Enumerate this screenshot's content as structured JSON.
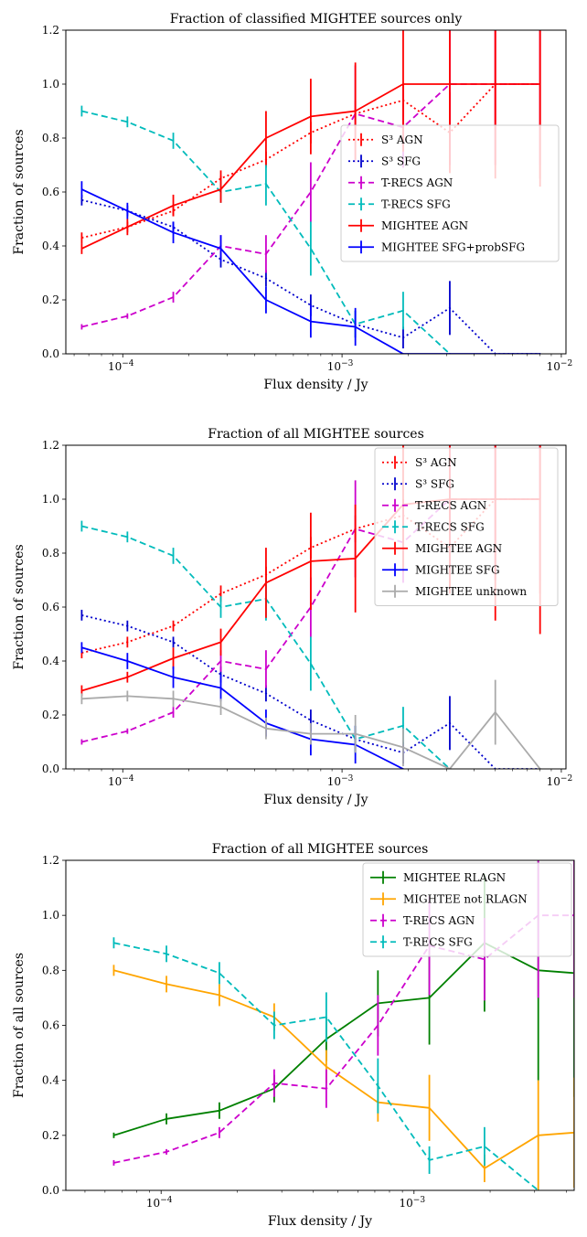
{
  "chart_data": [
    {
      "type": "line",
      "title": "Fraction of classified MIGHTEE sources only",
      "xlabel": "Flux density / Jy",
      "ylabel": "Fraction of sources",
      "xscale": "log",
      "xlim": [
        5.5e-05,
        0.0105
      ],
      "ylim": [
        0,
        1.2
      ],
      "yticks": [
        "0.0",
        "0.2",
        "0.4",
        "0.6",
        "0.8",
        "1.0",
        "1.2"
      ],
      "xticks": [
        {
          "value": 0.0001,
          "base": "10",
          "exp": "−4"
        },
        {
          "value": 0.001,
          "base": "10",
          "exp": "−3"
        },
        {
          "value": 0.01,
          "base": "10",
          "exp": "−2"
        }
      ],
      "legend": "right",
      "series": [
        {
          "name": "S³ AGN",
          "color": "#ff0000",
          "dash": "dot",
          "x": [
            6.5e-05,
            0.000105,
            0.00017,
            0.00028,
            0.00045,
            0.00072,
            0.00115,
            0.0019,
            0.0031,
            0.005,
            0.008
          ],
          "y": [
            0.43,
            0.47,
            0.53,
            0.65,
            0.72,
            0.82,
            0.89,
            0.94,
            0.82,
            1.0,
            1.0
          ],
          "err": [
            0.02,
            0.02,
            0.02,
            0.03,
            0.03,
            0.04,
            0.05,
            0.06,
            0.15,
            0.3,
            0.35
          ]
        },
        {
          "name": "S³ SFG",
          "color": "#0000cc",
          "dash": "dot",
          "x": [
            6.5e-05,
            0.000105,
            0.00017,
            0.00028,
            0.00045,
            0.00072,
            0.00115,
            0.0019,
            0.0031,
            0.005,
            0.008
          ],
          "y": [
            0.57,
            0.53,
            0.47,
            0.35,
            0.28,
            0.18,
            0.11,
            0.06,
            0.17,
            0.0,
            0.0
          ],
          "err": [
            0.02,
            0.02,
            0.02,
            0.03,
            0.03,
            0.04,
            0.05,
            0.04,
            0.1,
            0.0,
            0.0
          ]
        },
        {
          "name": "T-RECS AGN",
          "color": "#cc00cc",
          "dash": "dash",
          "x": [
            6.5e-05,
            0.000105,
            0.00017,
            0.00028,
            0.00045,
            0.00072,
            0.00115,
            0.0019,
            0.0031,
            0.005,
            0.008
          ],
          "y": [
            0.1,
            0.14,
            0.21,
            0.4,
            0.37,
            0.6,
            0.89,
            0.84,
            1.0,
            1.0,
            1.0
          ],
          "err": [
            0.01,
            0.01,
            0.02,
            0.04,
            0.07,
            0.11,
            0.18,
            0.15,
            0.3,
            0.3,
            0.3
          ]
        },
        {
          "name": "T-RECS SFG",
          "color": "#00bbbb",
          "dash": "dash",
          "x": [
            6.5e-05,
            0.000105,
            0.00017,
            0.00028,
            0.00045,
            0.00072,
            0.00115,
            0.0019,
            0.0031
          ],
          "y": [
            0.9,
            0.86,
            0.79,
            0.6,
            0.63,
            0.39,
            0.11,
            0.16,
            0.0
          ],
          "err": [
            0.02,
            0.02,
            0.03,
            0.04,
            0.08,
            0.1,
            0.05,
            0.07,
            0.0
          ]
        },
        {
          "name": "MIGHTEE AGN",
          "color": "#ff0000",
          "dash": "solid",
          "x": [
            6.5e-05,
            0.000105,
            0.00017,
            0.00028,
            0.00045,
            0.00072,
            0.00115,
            0.0019,
            0.0031,
            0.005,
            0.008
          ],
          "y": [
            0.39,
            0.47,
            0.55,
            0.61,
            0.8,
            0.88,
            0.9,
            1.0,
            1.0,
            1.0,
            1.0
          ],
          "err": [
            0.02,
            0.03,
            0.04,
            0.05,
            0.1,
            0.14,
            0.18,
            0.25,
            0.3,
            0.35,
            0.38
          ]
        },
        {
          "name": "MIGHTEE SFG+probSFG",
          "color": "#0000ff",
          "dash": "solid",
          "x": [
            6.5e-05,
            0.000105,
            0.00017,
            0.00028,
            0.00045,
            0.00072,
            0.00115,
            0.0019,
            0.0031,
            0.005,
            0.008
          ],
          "y": [
            0.61,
            0.53,
            0.45,
            0.39,
            0.2,
            0.12,
            0.1,
            0.0,
            0.0,
            0.0,
            0.0
          ],
          "err": [
            0.03,
            0.03,
            0.04,
            0.05,
            0.05,
            0.06,
            0.07,
            0.0,
            0.0,
            0.0,
            0.0
          ]
        }
      ]
    },
    {
      "type": "line",
      "title": "Fraction of all MIGHTEE sources",
      "xlabel": "Flux density / Jy",
      "ylabel": "Fraction of sources",
      "xscale": "log",
      "xlim": [
        5.5e-05,
        0.0105
      ],
      "ylim": [
        0,
        1.2
      ],
      "yticks": [
        "0.0",
        "0.2",
        "0.4",
        "0.6",
        "0.8",
        "1.0",
        "1.2"
      ],
      "xticks": [
        {
          "value": 0.0001,
          "base": "10",
          "exp": "−4"
        },
        {
          "value": 0.001,
          "base": "10",
          "exp": "−3"
        },
        {
          "value": 0.01,
          "base": "10",
          "exp": "−2"
        }
      ],
      "legend": "right",
      "series": [
        {
          "name": "S³ AGN",
          "color": "#ff0000",
          "dash": "dot",
          "x": [
            6.5e-05,
            0.000105,
            0.00017,
            0.00028,
            0.00045,
            0.00072,
            0.00115,
            0.0019,
            0.0031,
            0.005,
            0.008
          ],
          "y": [
            0.43,
            0.47,
            0.53,
            0.65,
            0.72,
            0.82,
            0.89,
            0.94,
            0.82,
            1.0,
            1.0
          ],
          "err": [
            0.02,
            0.02,
            0.02,
            0.03,
            0.03,
            0.04,
            0.05,
            0.06,
            0.15,
            0.3,
            0.35
          ]
        },
        {
          "name": "S³ SFG",
          "color": "#0000cc",
          "dash": "dot",
          "x": [
            6.5e-05,
            0.000105,
            0.00017,
            0.00028,
            0.00045,
            0.00072,
            0.00115,
            0.0019,
            0.0031,
            0.005,
            0.008
          ],
          "y": [
            0.57,
            0.53,
            0.47,
            0.35,
            0.28,
            0.18,
            0.11,
            0.06,
            0.17,
            0.0,
            0.0
          ],
          "err": [
            0.02,
            0.02,
            0.02,
            0.03,
            0.03,
            0.04,
            0.05,
            0.04,
            0.1,
            0.0,
            0.0
          ]
        },
        {
          "name": "T-RECS AGN",
          "color": "#cc00cc",
          "dash": "dash",
          "x": [
            6.5e-05,
            0.000105,
            0.00017,
            0.00028,
            0.00045,
            0.00072,
            0.00115,
            0.0019,
            0.0031,
            0.005,
            0.008
          ],
          "y": [
            0.1,
            0.14,
            0.21,
            0.4,
            0.37,
            0.6,
            0.89,
            0.84,
            1.0,
            1.0,
            1.0
          ],
          "err": [
            0.01,
            0.01,
            0.02,
            0.04,
            0.07,
            0.11,
            0.18,
            0.15,
            0.3,
            0.3,
            0.3
          ]
        },
        {
          "name": "T-RECS SFG",
          "color": "#00bbbb",
          "dash": "dash",
          "x": [
            6.5e-05,
            0.000105,
            0.00017,
            0.00028,
            0.00045,
            0.00072,
            0.00115,
            0.0019,
            0.0031
          ],
          "y": [
            0.9,
            0.86,
            0.79,
            0.6,
            0.63,
            0.39,
            0.11,
            0.16,
            0.0
          ],
          "err": [
            0.02,
            0.02,
            0.03,
            0.04,
            0.08,
            0.1,
            0.05,
            0.07,
            0.0
          ]
        },
        {
          "name": "MIGHTEE AGN",
          "color": "#ff0000",
          "dash": "solid",
          "x": [
            6.5e-05,
            0.000105,
            0.00017,
            0.00028,
            0.00045,
            0.00072,
            0.00115,
            0.0019,
            0.0031,
            0.005,
            0.008
          ],
          "y": [
            0.29,
            0.34,
            0.41,
            0.47,
            0.69,
            0.77,
            0.78,
            0.98,
            1.0,
            1.0,
            1.0
          ],
          "err": [
            0.02,
            0.02,
            0.04,
            0.05,
            0.13,
            0.18,
            0.2,
            0.25,
            0.35,
            0.45,
            0.5
          ]
        },
        {
          "name": "MIGHTEE SFG",
          "color": "#0000ff",
          "dash": "solid",
          "x": [
            6.5e-05,
            0.000105,
            0.00017,
            0.00028,
            0.00045,
            0.00072,
            0.00115,
            0.0019
          ],
          "y": [
            0.45,
            0.4,
            0.34,
            0.3,
            0.17,
            0.11,
            0.09,
            0.0
          ],
          "err": [
            0.02,
            0.03,
            0.04,
            0.05,
            0.05,
            0.06,
            0.07,
            0.0
          ]
        },
        {
          "name": "MIGHTEE unknown",
          "color": "#aaaaaa",
          "dash": "solid",
          "x": [
            6.5e-05,
            0.000105,
            0.00017,
            0.00028,
            0.00045,
            0.00072,
            0.00115,
            0.0019,
            0.0031,
            0.005,
            0.008
          ],
          "y": [
            0.26,
            0.27,
            0.26,
            0.23,
            0.15,
            0.13,
            0.13,
            0.08,
            0.0,
            0.21,
            0.0
          ],
          "err": [
            0.02,
            0.02,
            0.03,
            0.03,
            0.04,
            0.04,
            0.07,
            0.07,
            0.0,
            0.12,
            0.0
          ]
        }
      ]
    },
    {
      "type": "line",
      "title": "Fraction of all MIGHTEE sources",
      "xlabel": "Flux density / Jy",
      "ylabel": "Fraction of all sources",
      "xscale": "log",
      "xlim": [
        4.2e-05,
        0.0043
      ],
      "ylim": [
        0,
        1.2
      ],
      "yticks": [
        "0.0",
        "0.2",
        "0.4",
        "0.6",
        "0.8",
        "1.0",
        "1.2"
      ],
      "xticks": [
        {
          "value": 0.0001,
          "base": "10",
          "exp": "−4"
        },
        {
          "value": 0.001,
          "base": "10",
          "exp": "−3"
        }
      ],
      "legend": "top-right",
      "series": [
        {
          "name": "MIGHTEE RLAGN",
          "color": "#008000",
          "dash": "solid",
          "x": [
            6.5e-05,
            0.000105,
            0.00017,
            0.00028,
            0.00045,
            0.00072,
            0.00115,
            0.0019,
            0.0031,
            0.0043
          ],
          "y": [
            0.2,
            0.26,
            0.29,
            0.37,
            0.55,
            0.68,
            0.7,
            0.9,
            0.8,
            0.79
          ],
          "err": [
            0.01,
            0.02,
            0.03,
            0.05,
            0.08,
            0.12,
            0.17,
            0.25,
            0.4,
            0.45
          ]
        },
        {
          "name": "MIGHTEE not RLAGN",
          "color": "#ffa500",
          "dash": "solid",
          "x": [
            6.5e-05,
            0.000105,
            0.00017,
            0.00028,
            0.00045,
            0.00072,
            0.00115,
            0.0019,
            0.0031,
            0.0043
          ],
          "y": [
            0.8,
            0.75,
            0.71,
            0.63,
            0.45,
            0.32,
            0.3,
            0.08,
            0.2,
            0.21
          ],
          "err": [
            0.02,
            0.03,
            0.04,
            0.05,
            0.06,
            0.07,
            0.12,
            0.05,
            0.2,
            0.2
          ]
        },
        {
          "name": "T-RECS AGN",
          "color": "#cc00cc",
          "dash": "dash",
          "x": [
            6.5e-05,
            0.000105,
            0.00017,
            0.00028,
            0.00045,
            0.00072,
            0.00115,
            0.0019,
            0.0031,
            0.0043
          ],
          "y": [
            0.1,
            0.14,
            0.21,
            0.39,
            0.37,
            0.6,
            0.89,
            0.84,
            1.0,
            1.0
          ],
          "err": [
            0.01,
            0.01,
            0.02,
            0.05,
            0.07,
            0.11,
            0.18,
            0.15,
            0.3,
            0.3
          ]
        },
        {
          "name": "T-RECS SFG",
          "color": "#00bbbb",
          "dash": "dash",
          "x": [
            6.5e-05,
            0.000105,
            0.00017,
            0.00028,
            0.00045,
            0.00072,
            0.00115,
            0.0019,
            0.0031
          ],
          "y": [
            0.9,
            0.86,
            0.79,
            0.6,
            0.63,
            0.38,
            0.11,
            0.16,
            0.0
          ],
          "err": [
            0.02,
            0.03,
            0.04,
            0.05,
            0.09,
            0.1,
            0.05,
            0.07,
            0.0
          ]
        }
      ]
    }
  ]
}
